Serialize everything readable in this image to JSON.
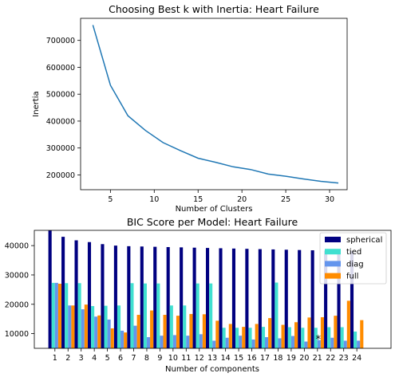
{
  "chart_data": [
    {
      "type": "line",
      "title": "Choosing Best k with Inertia: Heart Failure",
      "xlabel": "Number of Clusters",
      "ylabel": "Inertia",
      "xlim": [
        1.6,
        32.0
      ],
      "ylim": [
        145000,
        782000
      ],
      "xticks": [
        5,
        10,
        15,
        20,
        25,
        30
      ],
      "yticks": [
        200000,
        300000,
        400000,
        500000,
        600000,
        700000
      ],
      "grid": false,
      "color": "#1f77b4",
      "x": [
        3,
        5,
        7,
        9,
        11,
        13,
        15,
        17,
        19,
        21,
        23,
        25,
        27,
        29,
        31
      ],
      "y": [
        757000,
        533000,
        420000,
        365000,
        320000,
        290000,
        262000,
        247000,
        230000,
        220000,
        203000,
        195000,
        185000,
        176000,
        170000
      ]
    },
    {
      "type": "bar",
      "title": "BIC Score per Model: Heart Failure",
      "xlabel": "Number of components",
      "ylabel": "",
      "ylim": [
        5000,
        45200
      ],
      "yticks": [
        10000,
        20000,
        30000,
        40000
      ],
      "grid": false,
      "legend_position": "top-right",
      "categories": [
        "1",
        "2",
        "3",
        "4",
        "5",
        "6",
        "7",
        "8",
        "9",
        "10",
        "11",
        "12",
        "13",
        "14",
        "15",
        "16",
        "17",
        "18",
        "19",
        "20",
        "21",
        "22",
        "23",
        "24"
      ],
      "series": [
        {
          "name": "spherical",
          "color": "#000080",
          "values": [
            46000,
            43000,
            41800,
            41200,
            40500,
            40000,
            39800,
            39700,
            39600,
            39500,
            39400,
            39300,
            39200,
            39100,
            39000,
            38900,
            38800,
            38700,
            38600,
            38500,
            38400,
            38300,
            38200,
            38100
          ]
        },
        {
          "name": "tied",
          "color": "#40e0d0",
          "values": [
            27300,
            27200,
            27200,
            19400,
            19500,
            19600,
            27200,
            27100,
            27100,
            19600,
            19600,
            27100,
            27100,
            12000,
            12000,
            12000,
            12300,
            27400,
            12200,
            12000,
            12000,
            12200,
            12200,
            10700
          ]
        },
        {
          "name": "diag",
          "color": "#6495ed",
          "values": [
            27300,
            19600,
            18300,
            15800,
            14800,
            11000,
            12700,
            8800,
            9300,
            9500,
            9300,
            9800,
            7600,
            8600,
            9300,
            8000,
            8800,
            8400,
            9200,
            7300,
            7800,
            8600,
            7600,
            7600
          ]
        },
        {
          "name": "full",
          "color": "#ff8c00",
          "values": [
            27000,
            19600,
            19900,
            16200,
            11800,
            10400,
            16400,
            17900,
            16400,
            16100,
            16700,
            16600,
            14400,
            13300,
            12300,
            13300,
            15300,
            13000,
            13900,
            15500,
            15600,
            16100,
            21200,
            14600
          ]
        }
      ],
      "marker": {
        "text": "*",
        "category": "21",
        "value": 8300
      }
    }
  ]
}
